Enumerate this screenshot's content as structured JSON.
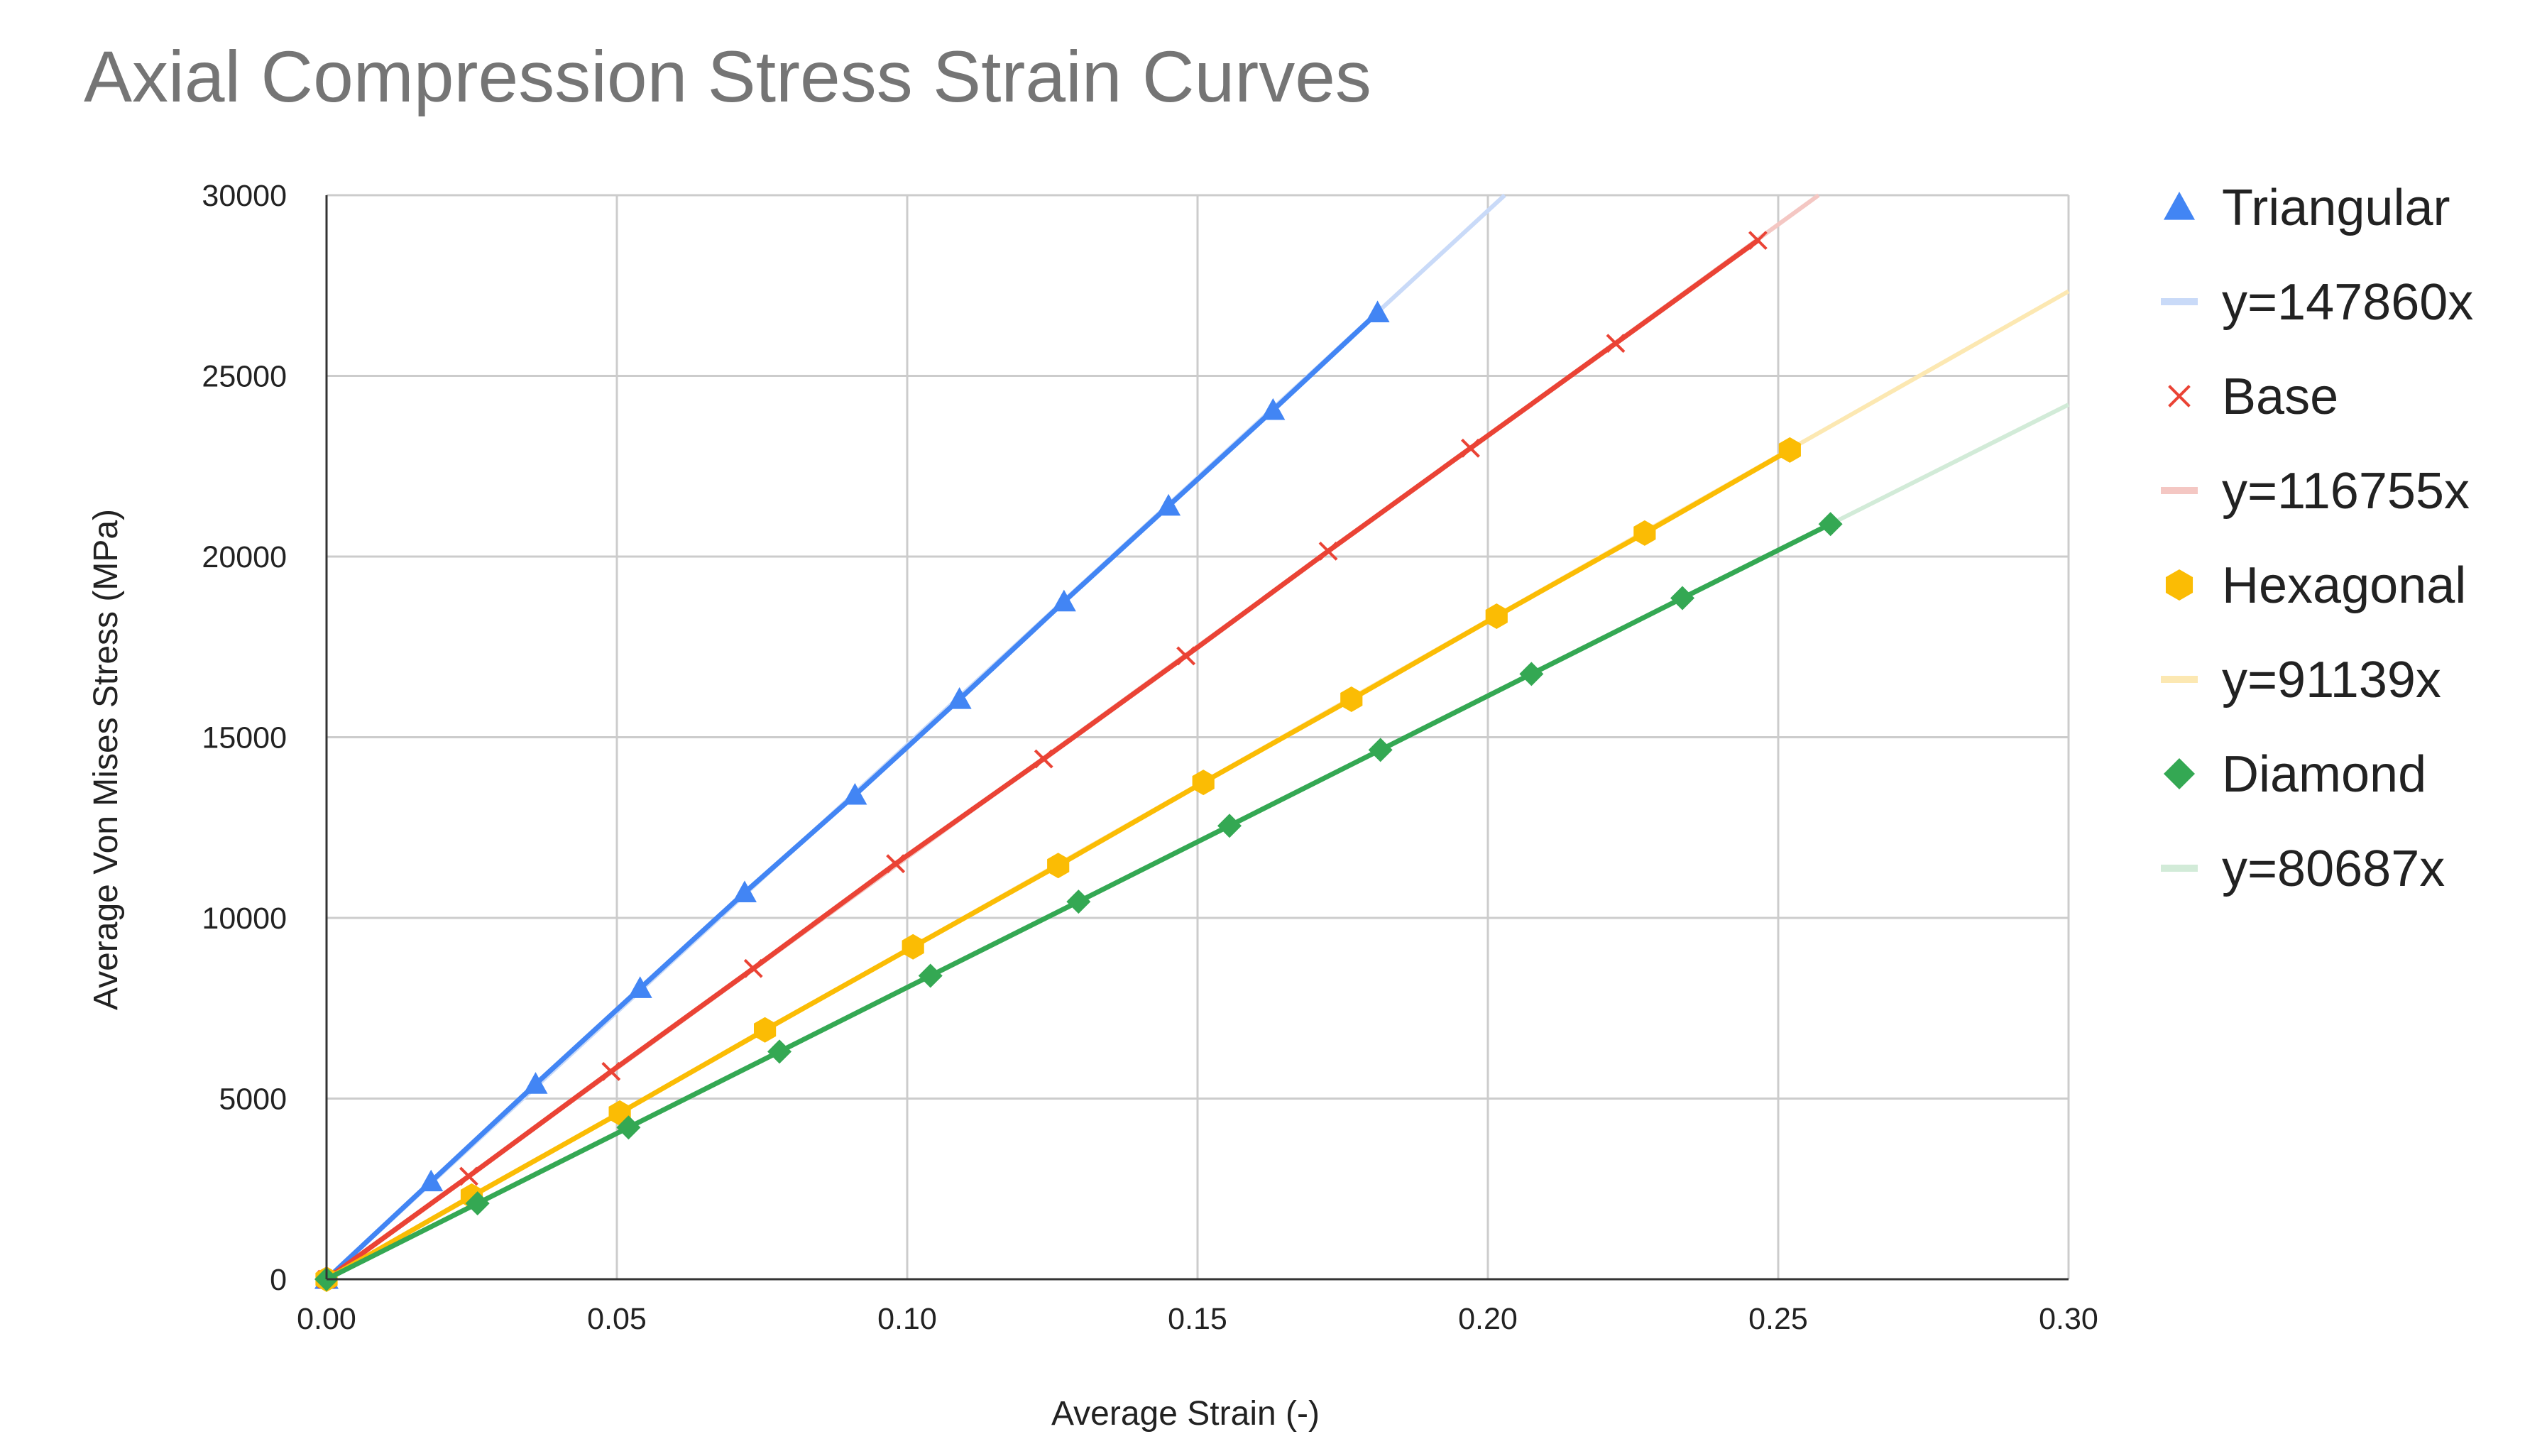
{
  "chart_data": {
    "type": "scatter",
    "title": "Axial Compression Stress Strain Curves",
    "xlabel": "Average Strain (-)",
    "ylabel": "Average Von Mises Stress (MPa)",
    "xlim": [
      0,
      0.3
    ],
    "ylim": [
      0,
      30000
    ],
    "x_ticks": [
      "0.00",
      "0.05",
      "0.10",
      "0.15",
      "0.20",
      "0.25",
      "0.30"
    ],
    "x_tick_values": [
      0,
      0.05,
      0.1,
      0.15,
      0.2,
      0.25,
      0.3
    ],
    "y_ticks": [
      "0",
      "5000",
      "10000",
      "15000",
      "20000",
      "25000",
      "30000"
    ],
    "y_tick_values": [
      0,
      5000,
      10000,
      15000,
      20000,
      25000,
      30000
    ],
    "grid": true,
    "legend_position": "right",
    "series": [
      {
        "name": "Triangular",
        "marker": "triangle",
        "color": "#4285F4",
        "x": [
          0,
          0.018,
          0.036,
          0.054,
          0.072,
          0.091,
          0.109,
          0.127,
          0.145,
          0.163,
          0.181
        ],
        "y": [
          0,
          2700,
          5400,
          8050,
          10700,
          13400,
          16050,
          18750,
          21400,
          24050,
          26750
        ]
      },
      {
        "name": "Base",
        "marker": "x",
        "color": "#EA4335",
        "x": [
          0,
          0.0245,
          0.049,
          0.0735,
          0.098,
          0.1235,
          0.148,
          0.1725,
          0.197,
          0.222,
          0.2465
        ],
        "y": [
          0,
          2850,
          5750,
          8600,
          11500,
          14400,
          17250,
          20150,
          23000,
          25900,
          28750
        ]
      },
      {
        "name": "Hexagonal",
        "marker": "hexagon",
        "color": "#FBBC04",
        "x": [
          0,
          0.025,
          0.0505,
          0.0755,
          0.101,
          0.126,
          0.151,
          0.1765,
          0.2015,
          0.227,
          0.252
        ],
        "y": [
          0,
          2300,
          4600,
          6900,
          9200,
          11450,
          13750,
          16050,
          18350,
          20650,
          22950
        ]
      },
      {
        "name": "Diamond",
        "marker": "diamond",
        "color": "#34A853",
        "x": [
          0,
          0.026,
          0.052,
          0.078,
          0.104,
          0.1295,
          0.1555,
          0.1815,
          0.2075,
          0.2335,
          0.259
        ],
        "y": [
          0,
          2100,
          4200,
          6300,
          8400,
          10450,
          12550,
          14650,
          16750,
          18850,
          20900
        ]
      }
    ],
    "trendlines": [
      {
        "name": "y=147860x",
        "slope": 147860,
        "color": "#C9DAF8",
        "for_series": "Triangular"
      },
      {
        "name": "y=116755x",
        "slope": 116755,
        "color": "#F4C7C3",
        "for_series": "Base"
      },
      {
        "name": "y=91139x",
        "slope": 91139,
        "color": "#FCE8B2",
        "for_series": "Hexagonal"
      },
      {
        "name": "y=80687x",
        "slope": 80687,
        "color": "#D2EBD8",
        "for_series": "Diamond"
      }
    ],
    "legend": [
      "Triangular",
      "y=147860x",
      "Base",
      "y=116755x",
      "Hexagonal",
      "y=91139x",
      "Diamond",
      "y=80687x"
    ]
  }
}
